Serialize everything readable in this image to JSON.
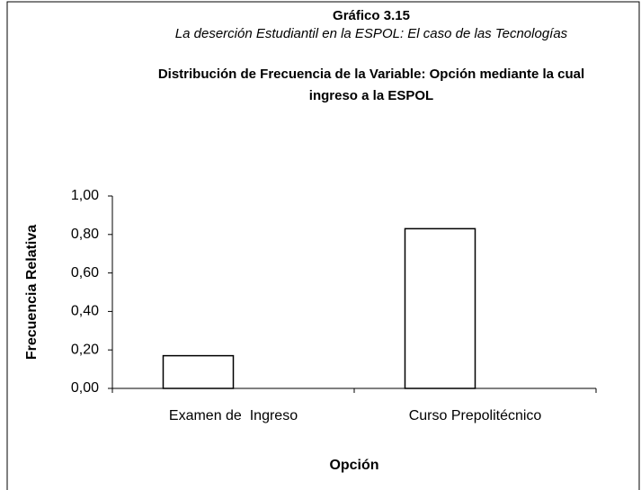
{
  "chart_data": {
    "type": "bar",
    "title": "Gráfico 3.15",
    "subtitle": "La deserción Estudiantil en la ESPOL: El caso de las Tecnologías",
    "heading": "Distribución de Frecuencia de la Variable: Opción mediante la cual ingreso a la ESPOL",
    "y_label": "Frecuencia Relativa",
    "x_label": "Opción",
    "categories": [
      "Examen de  Ingreso",
      "Curso Prepolitécnico"
    ],
    "values": [
      0.17,
      0.83
    ],
    "color": "#ffffff",
    "ylim": [
      0,
      1
    ],
    "yticks": [
      {
        "value": 0,
        "label": "0,00"
      },
      {
        "value": 0.2,
        "label": "0,20"
      },
      {
        "value": 0.4,
        "label": "0,40"
      },
      {
        "value": 0.6,
        "label": "0,60"
      },
      {
        "value": 0.8,
        "label": "0,80"
      },
      {
        "value": 1,
        "label": "1,00"
      }
    ],
    "grid": false
  }
}
